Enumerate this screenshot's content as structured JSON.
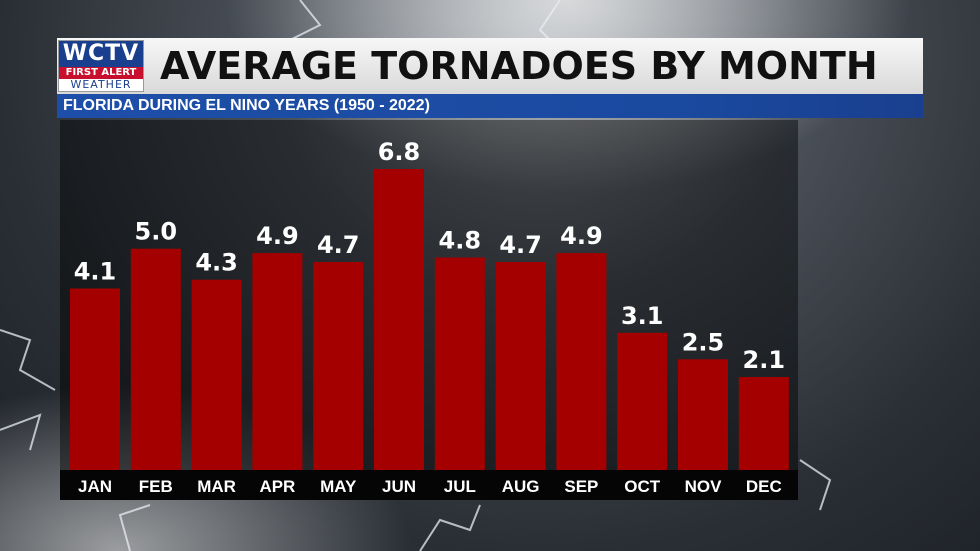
{
  "header": {
    "logo_main": "WCTV",
    "logo_sub": "FIRST ALERT",
    "logo_sub2": "WEATHER",
    "title": "AVERAGE TORNADOES BY MONTH",
    "subtitle": "FLORIDA DURING EL NINO YEARS (1950 - 2022)"
  },
  "colors": {
    "bar": "#a50000",
    "label_band": "#050505",
    "subtitle_bar": "#1e4fa8"
  },
  "chart_data": {
    "type": "bar",
    "title": "AVERAGE TORNADOES BY MONTH",
    "subtitle": "FLORIDA DURING EL NINO YEARS (1950 - 2022)",
    "categories": [
      "JAN",
      "FEB",
      "MAR",
      "APR",
      "MAY",
      "JUN",
      "JUL",
      "AUG",
      "SEP",
      "OCT",
      "NOV",
      "DEC"
    ],
    "values": [
      4.1,
      5.0,
      4.3,
      4.9,
      4.7,
      6.8,
      4.8,
      4.7,
      4.9,
      3.1,
      2.5,
      2.1
    ],
    "value_labels": [
      "4.1",
      "5.0",
      "4.3",
      "4.9",
      "4.7",
      "6.8",
      "4.8",
      "4.7",
      "4.9",
      "3.1",
      "2.5",
      "2.1"
    ],
    "ylim": [
      0,
      6.8
    ],
    "grid": false,
    "legend": "none"
  }
}
